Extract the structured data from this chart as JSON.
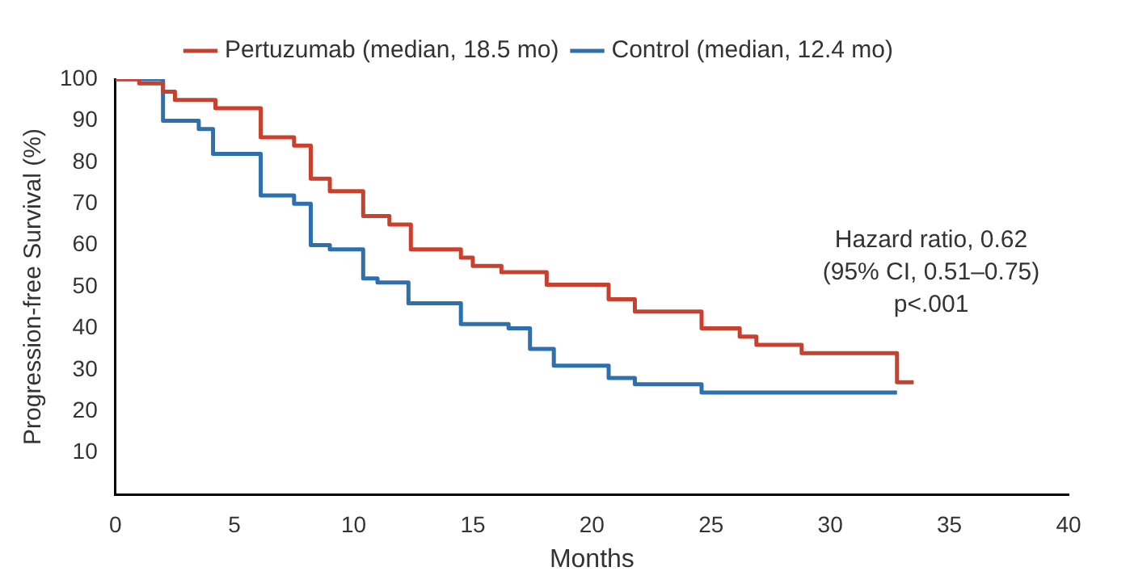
{
  "chart_data": {
    "type": "step",
    "xlabel": "Months",
    "ylabel": "Progression-free Survival (%)",
    "xlim": [
      0,
      40
    ],
    "xticks": [
      0,
      5,
      10,
      15,
      20,
      25,
      30,
      35,
      40
    ],
    "ylim": [
      0,
      100
    ],
    "yticks": [
      10,
      20,
      30,
      40,
      50,
      60,
      70,
      80,
      90,
      100
    ],
    "grid": false,
    "legend": "top",
    "marker": "none",
    "series": [
      {
        "name": "Pertuzumab (median, 18.5 mo)",
        "color": "#c8412e",
        "x": [
          0,
          1,
          2,
          2.5,
          4.2,
          6.1,
          7.5,
          8.2,
          9,
          10.4,
          11.5,
          12.4,
          14.5,
          15,
          16.2,
          18.1,
          20.7,
          21.8,
          24.6,
          26.2,
          26.9,
          28.8,
          32.8,
          33.5
        ],
        "values": [
          100,
          99,
          97,
          95,
          93,
          86,
          84,
          76,
          73,
          67,
          65,
          59,
          57,
          55,
          53.5,
          50.5,
          47,
          44,
          40,
          38,
          36,
          34,
          27,
          27
        ]
      },
      {
        "name": "Control (median, 12.4 mo)",
        "color": "#2e6fad",
        "x": [
          0,
          2,
          3.5,
          4.1,
          6.1,
          7.5,
          8.2,
          9,
          10.4,
          11,
          12.3,
          14.5,
          15.3,
          16.5,
          17.4,
          18.4,
          20.7,
          21.8,
          24.6,
          32.8
        ],
        "values": [
          100,
          90,
          88,
          82,
          72,
          70,
          60,
          59,
          52,
          51,
          46,
          41,
          41,
          40,
          35,
          31,
          28,
          26.5,
          24.5,
          24.5
        ]
      }
    ],
    "annotations": [
      "Hazard ratio, 0.62",
      "(95% CI, 0.51–0.75)",
      "p<.001"
    ]
  }
}
